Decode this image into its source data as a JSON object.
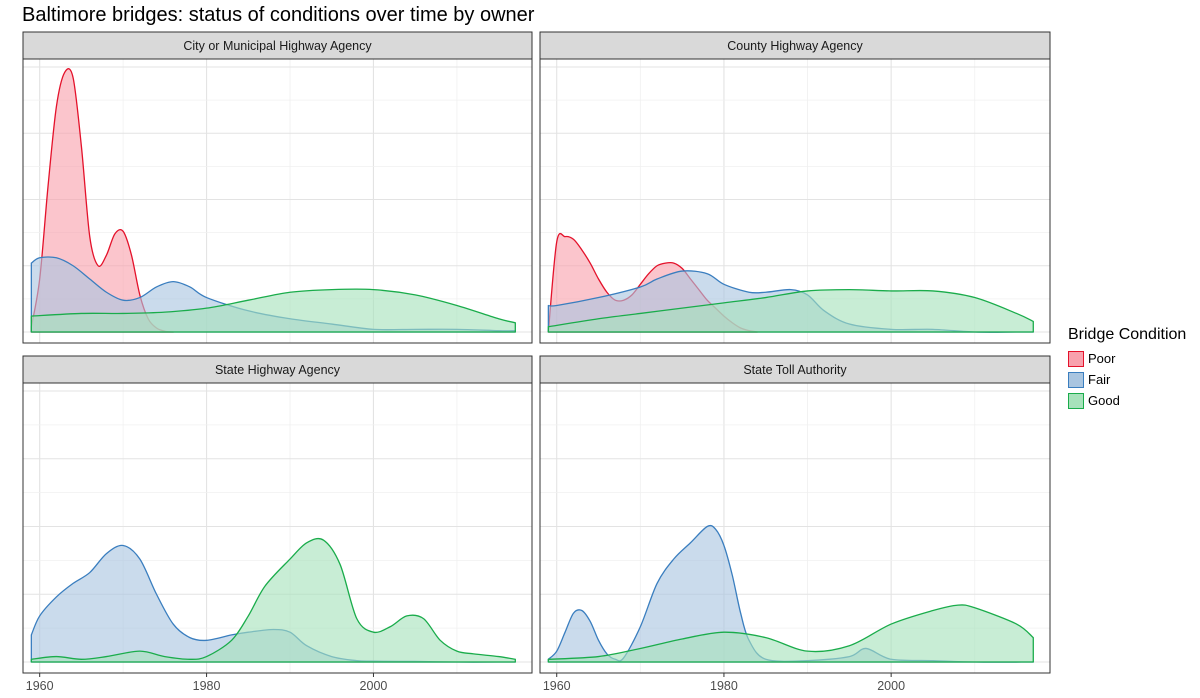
{
  "title": "Baltimore bridges: status of conditions over time by owner",
  "legend": {
    "title": "Bridge Condition",
    "items": [
      {
        "label": "Poor",
        "fill": "#f8a1ad",
        "stroke": "#e4122b"
      },
      {
        "label": "Fair",
        "fill": "#a9c5e0",
        "stroke": "#3a7ebf"
      },
      {
        "label": "Good",
        "fill": "#a7e2bb",
        "stroke": "#1aac4b"
      }
    ]
  },
  "chart_data": {
    "type": "area",
    "subtype": "density",
    "title": "Baltimore bridges: status of conditions over time by owner",
    "xlabel": "",
    "ylabel": "",
    "xlim": [
      1958,
      2019
    ],
    "xticks": [
      1960,
      1980,
      2000
    ],
    "ylim": [
      0,
      1
    ],
    "grid": true,
    "legend_position": "right",
    "panels": [
      {
        "name": "City or Municipal Highway Agency",
        "series": [
          {
            "name": "Poor",
            "x": [
              1959,
              1960,
              1961,
              1962,
              1963,
              1964,
              1965,
              1966,
              1967,
              1968,
              1969,
              1970,
              1971,
              1972,
              1973,
              1974,
              1975,
              1976
            ],
            "y": [
              0.02,
              0.2,
              0.55,
              0.85,
              0.98,
              0.96,
              0.7,
              0.36,
              0.25,
              0.29,
              0.37,
              0.38,
              0.29,
              0.14,
              0.05,
              0.015,
              0.003,
              0.0
            ]
          },
          {
            "name": "Fair",
            "x": [
              1959,
              1960,
              1962,
              1964,
              1966,
              1968,
              1970,
              1972,
              1974,
              1976,
              1978,
              1980,
              1985,
              1990,
              1995,
              2000,
              2005,
              2010,
              2015,
              2017
            ],
            "y": [
              0.26,
              0.28,
              0.28,
              0.25,
              0.2,
              0.15,
              0.12,
              0.13,
              0.17,
              0.19,
              0.17,
              0.13,
              0.08,
              0.05,
              0.03,
              0.01,
              0.01,
              0.01,
              0.005,
              0.005
            ]
          },
          {
            "name": "Good",
            "x": [
              1959,
              1965,
              1970,
              1975,
              1980,
              1985,
              1990,
              1995,
              2000,
              2005,
              2010,
              2015,
              2017
            ],
            "y": [
              0.06,
              0.07,
              0.07,
              0.075,
              0.09,
              0.12,
              0.15,
              0.16,
              0.16,
              0.14,
              0.1,
              0.05,
              0.035
            ]
          }
        ]
      },
      {
        "name": "County Highway Agency",
        "series": [
          {
            "name": "Poor",
            "x": [
              1959,
              1960,
              1961,
              1962,
              1963,
              1964,
              1965,
              1966,
              1967,
              1968,
              1969,
              1970,
              1971,
              1972,
              1973,
              1974,
              1975,
              1976,
              1977,
              1978,
              1979,
              1980,
              1981,
              1982,
              1983,
              1984
            ],
            "y": [
              0.0,
              0.34,
              0.36,
              0.35,
              0.31,
              0.26,
              0.2,
              0.15,
              0.12,
              0.12,
              0.14,
              0.18,
              0.22,
              0.25,
              0.26,
              0.26,
              0.24,
              0.2,
              0.16,
              0.12,
              0.09,
              0.06,
              0.035,
              0.015,
              0.005,
              0.0
            ]
          },
          {
            "name": "Fair",
            "x": [
              1959,
              1960,
              1965,
              1970,
              1972,
              1975,
              1978,
              1980,
              1983,
              1985,
              1988,
              1990,
              1992,
              1995,
              2000,
              2005,
              2010,
              2015,
              2017
            ],
            "y": [
              0.1,
              0.1,
              0.13,
              0.17,
              0.2,
              0.23,
              0.22,
              0.18,
              0.15,
              0.15,
              0.16,
              0.14,
              0.08,
              0.03,
              0.01,
              0.01,
              0.0,
              0.0,
              0.0
            ]
          },
          {
            "name": "Good",
            "x": [
              1959,
              1965,
              1970,
              1975,
              1980,
              1985,
              1990,
              1995,
              2000,
              2005,
              2010,
              2015,
              2017
            ],
            "y": [
              0.02,
              0.05,
              0.07,
              0.09,
              0.11,
              0.13,
              0.155,
              0.16,
              0.155,
              0.155,
              0.13,
              0.07,
              0.04
            ]
          }
        ]
      },
      {
        "name": "State Highway Agency",
        "series": [
          {
            "name": "Fair",
            "x": [
              1959,
              1960,
              1962,
              1964,
              1966,
              1968,
              1970,
              1972,
              1974,
              1976,
              1978,
              1980,
              1983,
              1985,
              1988,
              1990,
              1992,
              1995,
              1998,
              2000,
              2005,
              2010,
              2015,
              2017
            ],
            "y": [
              0.1,
              0.17,
              0.24,
              0.29,
              0.33,
              0.4,
              0.43,
              0.38,
              0.25,
              0.14,
              0.09,
              0.08,
              0.1,
              0.11,
              0.12,
              0.11,
              0.06,
              0.02,
              0.005,
              0.003,
              0.002,
              0.0,
              0.0,
              0.0
            ]
          },
          {
            "name": "Good",
            "x": [
              1959,
              1962,
              1965,
              1968,
              1972,
              1975,
              1978,
              1980,
              1983,
              1985,
              1987,
              1990,
              1992,
              1994,
              1996,
              1998,
              2000,
              2002,
              2004,
              2006,
              2008,
              2010,
              2012,
              2015,
              2017
            ],
            "y": [
              0.01,
              0.02,
              0.01,
              0.02,
              0.04,
              0.02,
              0.01,
              0.02,
              0.08,
              0.17,
              0.28,
              0.38,
              0.44,
              0.45,
              0.36,
              0.16,
              0.11,
              0.13,
              0.17,
              0.16,
              0.08,
              0.04,
              0.03,
              0.02,
              0.01
            ]
          }
        ]
      },
      {
        "name": "State Toll Authority",
        "series": [
          {
            "name": "Fair",
            "x": [
              1959,
              1960,
              1961,
              1962,
              1963,
              1964,
              1965,
              1966,
              1967,
              1968,
              1970,
              1972,
              1974,
              1976,
              1978,
              1979,
              1980,
              1981,
              1982,
              1983,
              1985,
              1990,
              1995,
              1997,
              2000,
              2005,
              2010,
              2017
            ],
            "y": [
              0.01,
              0.04,
              0.11,
              0.18,
              0.19,
              0.15,
              0.08,
              0.03,
              0.01,
              0.015,
              0.13,
              0.29,
              0.38,
              0.44,
              0.5,
              0.49,
              0.43,
              0.32,
              0.18,
              0.08,
              0.01,
              0.005,
              0.02,
              0.05,
              0.01,
              0.005,
              0.0,
              0.0
            ]
          },
          {
            "name": "Good",
            "x": [
              1959,
              1965,
              1970,
              1975,
              1980,
              1985,
              1990,
              1995,
              2000,
              2005,
              2008,
              2010,
              2015,
              2017
            ],
            "y": [
              0.01,
              0.02,
              0.05,
              0.085,
              0.11,
              0.09,
              0.04,
              0.06,
              0.14,
              0.19,
              0.21,
              0.2,
              0.14,
              0.09
            ]
          }
        ]
      }
    ]
  }
}
